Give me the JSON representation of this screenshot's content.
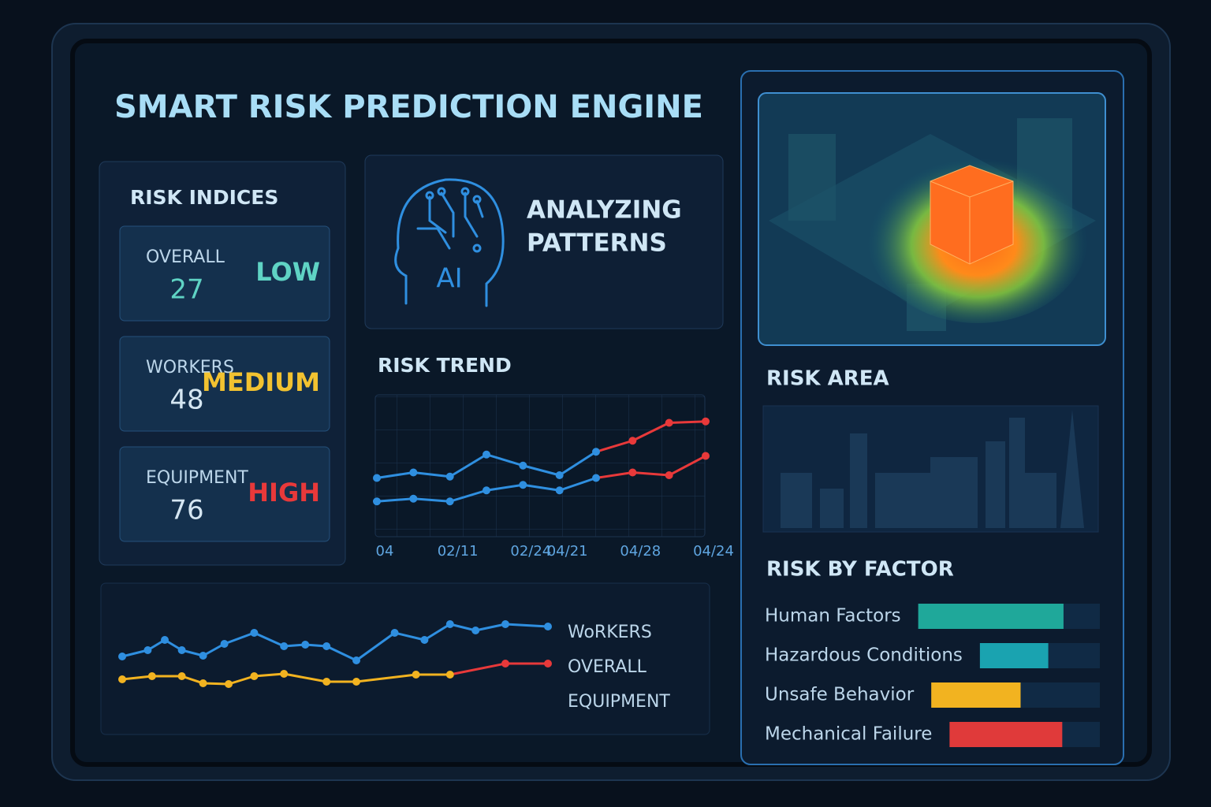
{
  "header": {
    "title": "SMART RISK PREDICTION ENGINE"
  },
  "risk_indices": {
    "title": "RISK INDICES",
    "items": [
      {
        "label": "OVERALL",
        "value": 27,
        "level": "LOW",
        "color": "#5fd3c4"
      },
      {
        "label": "WORKERS",
        "value": 48,
        "level": "MEDIUM",
        "color": "#f2c230"
      },
      {
        "label": "EQUIPMENT",
        "value": 76,
        "level": "HIGH",
        "color": "#e8393a"
      }
    ]
  },
  "analysis": {
    "icon_label": "AI",
    "status_lines": [
      "ANALYZING",
      "PATTERNS"
    ]
  },
  "risk_trend": {
    "title": "RISK TREND",
    "chart_data": {
      "type": "line",
      "categories": [
        "04",
        null,
        "02/11",
        null,
        "02/24",
        "04/21",
        null,
        "04/28",
        null,
        "04/24"
      ],
      "ylim": [
        0,
        100
      ],
      "series": [
        {
          "values": [
            42,
            46,
            43,
            59,
            51,
            44,
            61,
            69,
            82,
            83
          ],
          "colors": [
            "#2f8fe0",
            "#2f8fe0",
            "#2f8fe0",
            "#2f8fe0",
            "#2f8fe0",
            "#2f8fe0",
            "#2f8fe0",
            "#e8393a",
            "#e8393a",
            "#e8393a"
          ]
        },
        {
          "values": [
            25,
            27,
            25,
            33,
            37,
            33,
            42,
            46,
            44,
            58
          ],
          "colors": [
            "#2f8fe0",
            "#2f8fe0",
            "#2f8fe0",
            "#2f8fe0",
            "#2f8fe0",
            "#2f8fe0",
            "#2f8fe0",
            "#e8393a",
            "#e8393a",
            "#e8393a"
          ]
        }
      ]
    }
  },
  "overview": {
    "legend": [
      "WoRKERS",
      "OVERALL",
      "EQUIPMENT"
    ],
    "chart_data": {
      "type": "line",
      "xlim": [
        0,
        100
      ],
      "ylim": [
        0,
        100
      ],
      "series": [
        {
          "x": [
            0,
            6,
            10,
            14,
            19,
            24,
            31,
            38,
            43,
            48,
            55,
            64,
            71,
            77,
            83,
            90,
            100
          ],
          "values": [
            47,
            55,
            68,
            55,
            48,
            63,
            77,
            60,
            62,
            60,
            42,
            77,
            68,
            88,
            80,
            88,
            85
          ],
          "colors": [
            "#2f8fe0",
            "#2f8fe0",
            "#2f8fe0",
            "#2f8fe0",
            "#2f8fe0",
            "#2f8fe0",
            "#2f8fe0",
            "#2f8fe0",
            "#2f8fe0",
            "#2f8fe0",
            "#2f8fe0",
            "#2f8fe0",
            "#2f8fe0",
            "#2f8fe0",
            "#2f8fe0",
            "#2f8fe0",
            "#2f8fe0"
          ]
        },
        {
          "x": [
            0,
            7,
            14,
            19,
            25,
            31,
            38,
            48,
            55,
            69,
            77,
            90,
            100
          ],
          "values": [
            18,
            22,
            22,
            13,
            12,
            22,
            25,
            15,
            15,
            24,
            24,
            38,
            38
          ],
          "colors": [
            "#f2b320",
            "#f2b320",
            "#f2b320",
            "#f2b320",
            "#f2b320",
            "#f2b320",
            "#f2b320",
            "#f2b320",
            "#f2b320",
            "#f2b320",
            "#f2b320",
            "#e8393a",
            "#e8393a"
          ]
        }
      ]
    }
  },
  "risk_area": {
    "title": "RISK AREA"
  },
  "risk_by_factor": {
    "title": "RISK BY FACTOR",
    "chart_data": {
      "type": "bar",
      "categories": [
        "Human Factors",
        "Hazardous Conditions",
        "Unsafe Behavior",
        "Mechanical Failure"
      ],
      "values": [
        80,
        57,
        53,
        75
      ],
      "colors": [
        "#1fa89a",
        "#1aa3b0",
        "#f2b320",
        "#e03a3a"
      ],
      "xlim": [
        0,
        100
      ]
    }
  }
}
